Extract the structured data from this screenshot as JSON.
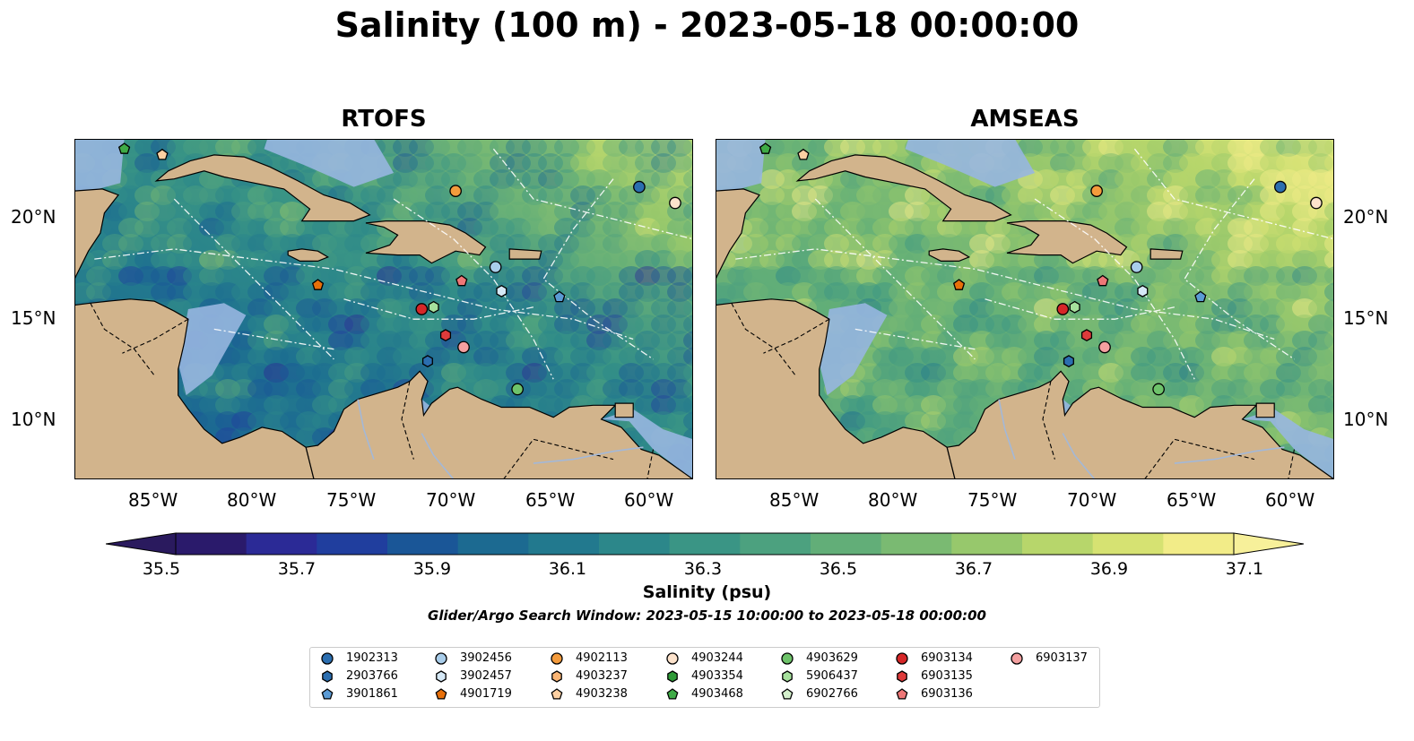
{
  "title": "Salinity (100 m) - 2023-05-18 00:00:00",
  "panels": [
    {
      "title": "RTOFS"
    },
    {
      "title": "AMSEAS"
    }
  ],
  "lon_ticks": [
    "85°W",
    "80°W",
    "75°W",
    "70°W",
    "65°W",
    "60°W"
  ],
  "lat_ticks": [
    "20°N",
    "15°N",
    "10°N"
  ],
  "colorbar": {
    "label": "Salinity (psu)",
    "ticks": [
      "35.5",
      "35.7",
      "35.9",
      "36.1",
      "36.3",
      "36.5",
      "36.7",
      "36.9",
      "37.1"
    ],
    "colors": [
      "#2a1a6b",
      "#2b2a96",
      "#203e9e",
      "#1a5697",
      "#1c6a91",
      "#22798e",
      "#2c878a",
      "#3a9585",
      "#4ca17f",
      "#62ae78",
      "#7aba72",
      "#97c86c",
      "#b7d66b",
      "#d6e272",
      "#f2ec88"
    ],
    "extend": "both"
  },
  "search_window": "Glider/Argo Search Window: 2023-05-15 10:00:00 to 2023-05-18 00:00:00",
  "legend": [
    {
      "id": "1902313",
      "marker": "circle",
      "color": "#2b6eb0"
    },
    {
      "id": "2903766",
      "marker": "hexagon",
      "color": "#2b6eb0"
    },
    {
      "id": "3901861",
      "marker": "pentagon",
      "color": "#5b9bd5"
    },
    {
      "id": "3902456",
      "marker": "circle",
      "color": "#a9cdea"
    },
    {
      "id": "3902457",
      "marker": "hexagon",
      "color": "#d5e8f6"
    },
    {
      "id": "4901719",
      "marker": "pentagon",
      "color": "#e8700a"
    },
    {
      "id": "4902113",
      "marker": "circle",
      "color": "#f49b3c"
    },
    {
      "id": "4903237",
      "marker": "hexagon",
      "color": "#fbb574"
    },
    {
      "id": "4903238",
      "marker": "pentagon",
      "color": "#fdd0a2"
    },
    {
      "id": "4903244",
      "marker": "circle",
      "color": "#fde3cc"
    },
    {
      "id": "4903354",
      "marker": "hexagon",
      "color": "#2e9a37"
    },
    {
      "id": "4903468",
      "marker": "pentagon",
      "color": "#3fab46"
    },
    {
      "id": "4903629",
      "marker": "circle",
      "color": "#6ec36a"
    },
    {
      "id": "5906437",
      "marker": "hexagon",
      "color": "#a6e09c"
    },
    {
      "id": "6902766",
      "marker": "pentagon",
      "color": "#d4f0cc"
    },
    {
      "id": "6903134",
      "marker": "circle",
      "color": "#d62728"
    },
    {
      "id": "6903135",
      "marker": "hexagon",
      "color": "#de3b3b"
    },
    {
      "id": "6903136",
      "marker": "pentagon",
      "color": "#ee7777"
    },
    {
      "id": "6903137",
      "marker": "circle",
      "color": "#f4a0a0"
    }
  ],
  "map_extent": {
    "lon": [
      -89,
      -58
    ],
    "lat": [
      7,
      24
    ]
  },
  "colors": {
    "land": "#d2b48c",
    "shelf_water": "#97b6e0"
  },
  "floats": [
    {
      "id": "4903468",
      "lon": -86.5,
      "lat": 23.5
    },
    {
      "id": "4903238",
      "lon": -84.6,
      "lat": 23.2
    },
    {
      "id": "1902313",
      "lon": -60.7,
      "lat": 21.6
    },
    {
      "id": "4903244",
      "lon": -58.9,
      "lat": 20.8
    },
    {
      "id": "4902113",
      "lon": -69.9,
      "lat": 21.4
    },
    {
      "id": "3902456",
      "lon": -67.9,
      "lat": 17.6
    },
    {
      "id": "6903136",
      "lon": -69.6,
      "lat": 16.9
    },
    {
      "id": "4901719",
      "lon": -76.8,
      "lat": 16.7
    },
    {
      "id": "3902457",
      "lon": -67.6,
      "lat": 16.4
    },
    {
      "id": "3901861",
      "lon": -64.7,
      "lat": 16.1
    },
    {
      "id": "6903134",
      "lon": -71.6,
      "lat": 15.5
    },
    {
      "id": "5906437",
      "lon": -71.0,
      "lat": 15.6
    },
    {
      "id": "6903135",
      "lon": -70.4,
      "lat": 14.2
    },
    {
      "id": "6903137",
      "lon": -69.5,
      "lat": 13.6
    },
    {
      "id": "2903766",
      "lon": -71.3,
      "lat": 12.9
    },
    {
      "id": "4903629",
      "lon": -66.8,
      "lat": 11.5
    }
  ]
}
